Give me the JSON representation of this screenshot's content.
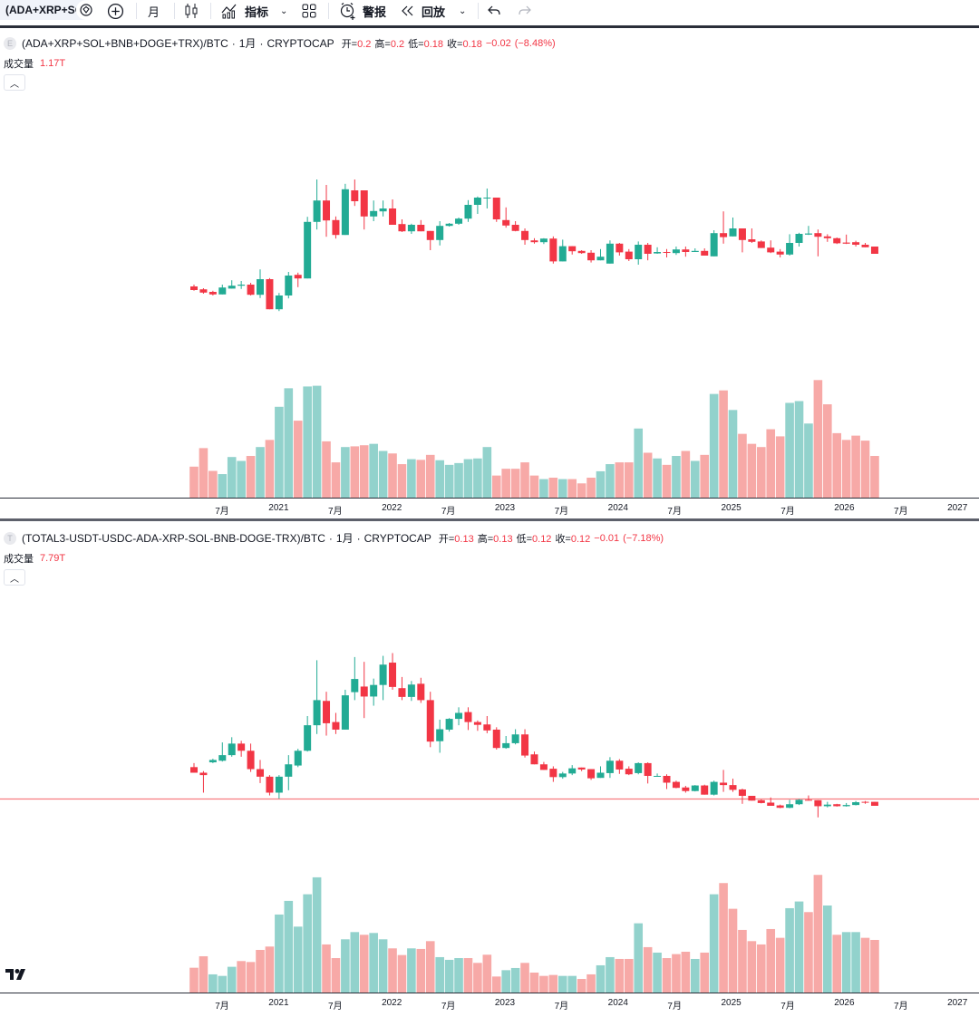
{
  "toolbar": {
    "symbol": "(ADA+XRP+SOL+BNB+DOGE+TRX)/BTC",
    "interval": "月",
    "indicators_label": "指标",
    "alerts_label": "警报",
    "replay_label": "回放"
  },
  "colors": {
    "up": "#22ab94",
    "down": "#f23645",
    "up_volume": "#92d2cc",
    "down_volume": "#f7a9a7",
    "hline": "#f77c80"
  },
  "x_ticks": [
    "7月",
    "2021",
    "7月",
    "2022",
    "7月",
    "2023",
    "7月",
    "2024",
    "7月",
    "2025",
    "7月",
    "2026",
    "7月",
    "2027"
  ],
  "panes": [
    {
      "title": "(ADA+XRP+SOL+BNB+DOGE+TRX)/BTC",
      "interval": "1月",
      "exchange": "CRYPTOCAP",
      "sep": "·",
      "icon_letter": "E",
      "open_label": "开=",
      "open": "0.2",
      "high_label": "高=",
      "high": "0.2",
      "low_label": "低=",
      "low": "0.18",
      "close_label": "收=",
      "close": "0.18",
      "change": "−0.02",
      "change_pct": "(−8.48%)",
      "volume_label": "成交量",
      "volume": "1.17T"
    },
    {
      "title": "(TOTAL3-USDT-USDC-ADA-XRP-SOL-BNB-DOGE-TRX)/BTC",
      "interval": "1月",
      "exchange": "CRYPTOCAP",
      "sep": "·",
      "icon_letter": "T",
      "open_label": "开=",
      "open": "0.13",
      "high_label": "高=",
      "high": "0.13",
      "low_label": "低=",
      "low": "0.12",
      "close_label": "收=",
      "close": "0.12",
      "change": "−0.01",
      "change_pct": "(−7.18%)",
      "volume_label": "成交量",
      "volume": "7.79T"
    }
  ],
  "chart_data": [
    {
      "type": "candlestick",
      "title": "(ADA+XRP+SOL+BNB+DOGE+TRX)/BTC · 1月 · CRYPTOCAP",
      "x_start": "2020-04",
      "x_interval": "1 month",
      "ohlc_fields": [
        "open",
        "high",
        "low",
        "close"
      ],
      "ohlc": [
        [
          0.09,
          0.095,
          0.078,
          0.08
        ],
        [
          0.082,
          0.085,
          0.07,
          0.073
        ],
        [
          0.075,
          0.078,
          0.065,
          0.068
        ],
        [
          0.068,
          0.095,
          0.068,
          0.087
        ],
        [
          0.084,
          0.107,
          0.084,
          0.092
        ],
        [
          0.092,
          0.105,
          0.083,
          0.095
        ],
        [
          0.095,
          0.1,
          0.065,
          0.067
        ],
        [
          0.067,
          0.137,
          0.058,
          0.11
        ],
        [
          0.11,
          0.113,
          0.027,
          0.027
        ],
        [
          0.027,
          0.072,
          0.022,
          0.065
        ],
        [
          0.065,
          0.13,
          0.057,
          0.12
        ],
        [
          0.122,
          0.128,
          0.088,
          0.112
        ],
        [
          0.112,
          0.282,
          0.112,
          0.268
        ],
        [
          0.268,
          0.385,
          0.247,
          0.327
        ],
        [
          0.327,
          0.37,
          0.227,
          0.272
        ],
        [
          0.273,
          0.283,
          0.222,
          0.232
        ],
        [
          0.232,
          0.373,
          0.232,
          0.358
        ],
        [
          0.355,
          0.385,
          0.312,
          0.325
        ],
        [
          0.355,
          0.355,
          0.247,
          0.283
        ],
        [
          0.283,
          0.327,
          0.27,
          0.298
        ],
        [
          0.297,
          0.327,
          0.283,
          0.305
        ],
        [
          0.305,
          0.33,
          0.26,
          0.26
        ],
        [
          0.262,
          0.275,
          0.24,
          0.242
        ],
        [
          0.242,
          0.263,
          0.235,
          0.26
        ],
        [
          0.26,
          0.273,
          0.242,
          0.242
        ],
        [
          0.243,
          0.243,
          0.19,
          0.218
        ],
        [
          0.218,
          0.27,
          0.203,
          0.257
        ],
        [
          0.257,
          0.265,
          0.255,
          0.263
        ],
        [
          0.263,
          0.28,
          0.26,
          0.277
        ],
        [
          0.277,
          0.328,
          0.268,
          0.315
        ],
        [
          0.315,
          0.338,
          0.29,
          0.335
        ],
        [
          0.333,
          0.36,
          0.305,
          0.335
        ],
        [
          0.335,
          0.335,
          0.268,
          0.275
        ],
        [
          0.273,
          0.308,
          0.252,
          0.258
        ],
        [
          0.26,
          0.27,
          0.242,
          0.243
        ],
        [
          0.243,
          0.25,
          0.205,
          0.218
        ],
        [
          0.217,
          0.223,
          0.208,
          0.212
        ],
        [
          0.212,
          0.223,
          0.207,
          0.222
        ],
        [
          0.222,
          0.228,
          0.153,
          0.159
        ],
        [
          0.159,
          0.219,
          0.159,
          0.201
        ],
        [
          0.201,
          0.201,
          0.178,
          0.187
        ],
        [
          0.188,
          0.19,
          0.18,
          0.182
        ],
        [
          0.183,
          0.19,
          0.156,
          0.162
        ],
        [
          0.162,
          0.193,
          0.162,
          0.172
        ],
        [
          0.153,
          0.217,
          0.153,
          0.208
        ],
        [
          0.208,
          0.21,
          0.175,
          0.184
        ],
        [
          0.186,
          0.193,
          0.16,
          0.165
        ],
        [
          0.165,
          0.214,
          0.15,
          0.205
        ],
        [
          0.205,
          0.21,
          0.162,
          0.18
        ],
        [
          0.181,
          0.198,
          0.18,
          0.185
        ],
        [
          0.185,
          0.193,
          0.17,
          0.183
        ],
        [
          0.182,
          0.2,
          0.177,
          0.192
        ],
        [
          0.192,
          0.2,
          0.172,
          0.185
        ],
        [
          0.185,
          0.195,
          0.185,
          0.188
        ],
        [
          0.188,
          0.195,
          0.175,
          0.175
        ],
        [
          0.173,
          0.245,
          0.173,
          0.237
        ],
        [
          0.237,
          0.297,
          0.208,
          0.226
        ],
        [
          0.228,
          0.28,
          0.228,
          0.25
        ],
        [
          0.25,
          0.25,
          0.184,
          0.218
        ],
        [
          0.22,
          0.25,
          0.21,
          0.213
        ],
        [
          0.214,
          0.217,
          0.196,
          0.196
        ],
        [
          0.197,
          0.217,
          0.182,
          0.184
        ],
        [
          0.186,
          0.193,
          0.17,
          0.178
        ],
        [
          0.178,
          0.234,
          0.175,
          0.21
        ],
        [
          0.21,
          0.238,
          0.2,
          0.235
        ],
        [
          0.233,
          0.257,
          0.232,
          0.236
        ],
        [
          0.237,
          0.247,
          0.173,
          0.227
        ],
        [
          0.228,
          0.234,
          0.213,
          0.223
        ],
        [
          0.223,
          0.225,
          0.207,
          0.209
        ],
        [
          0.211,
          0.233,
          0.207,
          0.208
        ],
        [
          0.212,
          0.216,
          0.2,
          0.205
        ],
        [
          0.205,
          0.21,
          0.198,
          0.198
        ],
        [
          0.2,
          0.2,
          0.18,
          0.18
        ]
      ],
      "volume_unit": "T",
      "volume": [
        0.87,
        1.39,
        0.75,
        0.66,
        1.14,
        1.03,
        1.17,
        1.42,
        1.62,
        2.55,
        3.07,
        2.16,
        3.12,
        3.14,
        1.58,
        0.99,
        1.42,
        1.44,
        1.47,
        1.51,
        1.31,
        1.24,
        0.94,
        1.08,
        1.06,
        1.2,
        1.05,
        0.92,
        0.97,
        1.08,
        1.1,
        1.42,
        0.62,
        0.81,
        0.81,
        0.99,
        0.62,
        0.52,
        0.56,
        0.52,
        0.52,
        0.4,
        0.56,
        0.74,
        0.94,
        0.99,
        0.99,
        1.94,
        1.26,
        1.1,
        0.92,
        1.17,
        1.31,
        1.03,
        1.2,
        2.91,
        3.01,
        2.46,
        1.79,
        1.51,
        1.42,
        1.92,
        1.72,
        2.66,
        2.71,
        2.08,
        3.3,
        2.62,
        1.81,
        1.62,
        1.74,
        1.6,
        1.17
      ]
    },
    {
      "type": "candlestick",
      "title": "(TOTAL3-USDT-USDC-ADA-XRP-SOL-BNB-DOGE-TRX)/BTC · 1月 · CRYPTOCAP",
      "x_start": "2020-04",
      "x_interval": "1 month",
      "ohlc_fields": [
        "open",
        "high",
        "low",
        "close"
      ],
      "ohlc": [
        [
          0.217,
          0.227,
          0.203,
          0.203
        ],
        [
          0.203,
          0.207,
          0.153,
          0.197
        ],
        [
          0.229,
          0.238,
          0.227,
          0.235
        ],
        [
          0.233,
          0.279,
          0.231,
          0.247
        ],
        [
          0.247,
          0.292,
          0.243,
          0.276
        ],
        [
          0.276,
          0.283,
          0.243,
          0.258
        ],
        [
          0.258,
          0.276,
          0.205,
          0.212
        ],
        [
          0.212,
          0.235,
          0.177,
          0.193
        ],
        [
          0.193,
          0.197,
          0.146,
          0.153
        ],
        [
          0.153,
          0.197,
          0.138,
          0.193
        ],
        [
          0.193,
          0.247,
          0.159,
          0.224
        ],
        [
          0.221,
          0.263,
          0.217,
          0.258
        ],
        [
          0.258,
          0.345,
          0.256,
          0.322
        ],
        [
          0.322,
          0.485,
          0.3,
          0.385
        ],
        [
          0.383,
          0.406,
          0.296,
          0.327
        ],
        [
          0.33,
          0.353,
          0.3,
          0.311
        ],
        [
          0.311,
          0.411,
          0.311,
          0.397
        ],
        [
          0.405,
          0.493,
          0.385,
          0.438
        ],
        [
          0.419,
          0.481,
          0.34,
          0.394
        ],
        [
          0.394,
          0.439,
          0.371,
          0.423
        ],
        [
          0.423,
          0.496,
          0.385,
          0.474
        ],
        [
          0.479,
          0.503,
          0.411,
          0.418
        ],
        [
          0.415,
          0.443,
          0.385,
          0.393
        ],
        [
          0.393,
          0.433,
          0.383,
          0.424
        ],
        [
          0.426,
          0.441,
          0.378,
          0.385
        ],
        [
          0.385,
          0.406,
          0.267,
          0.281
        ],
        [
          0.282,
          0.336,
          0.253,
          0.312
        ],
        [
          0.311,
          0.34,
          0.306,
          0.338
        ],
        [
          0.338,
          0.367,
          0.322,
          0.353
        ],
        [
          0.355,
          0.367,
          0.31,
          0.33
        ],
        [
          0.33,
          0.334,
          0.308,
          0.323
        ],
        [
          0.324,
          0.345,
          0.302,
          0.309
        ],
        [
          0.311,
          0.317,
          0.261,
          0.265
        ],
        [
          0.265,
          0.295,
          0.263,
          0.277
        ],
        [
          0.277,
          0.312,
          0.274,
          0.299
        ],
        [
          0.299,
          0.312,
          0.241,
          0.246
        ],
        [
          0.249,
          0.256,
          0.224,
          0.224
        ],
        [
          0.224,
          0.23,
          0.21,
          0.21
        ],
        [
          0.213,
          0.219,
          0.18,
          0.192
        ],
        [
          0.192,
          0.205,
          0.188,
          0.201
        ],
        [
          0.201,
          0.222,
          0.197,
          0.214
        ],
        [
          0.216,
          0.216,
          0.207,
          0.211
        ],
        [
          0.212,
          0.212,
          0.185,
          0.189
        ],
        [
          0.19,
          0.219,
          0.19,
          0.203
        ],
        [
          0.202,
          0.242,
          0.19,
          0.233
        ],
        [
          0.233,
          0.237,
          0.2,
          0.211
        ],
        [
          0.213,
          0.219,
          0.197,
          0.199
        ],
        [
          0.202,
          0.229,
          0.199,
          0.227
        ],
        [
          0.227,
          0.229,
          0.176,
          0.195
        ],
        [
          0.194,
          0.201,
          0.193,
          0.195
        ],
        [
          0.195,
          0.199,
          0.162,
          0.178
        ],
        [
          0.18,
          0.183,
          0.164,
          0.165
        ],
        [
          0.166,
          0.17,
          0.153,
          0.157
        ],
        [
          0.157,
          0.172,
          0.156,
          0.171
        ],
        [
          0.171,
          0.173,
          0.148,
          0.148
        ],
        [
          0.148,
          0.183,
          0.146,
          0.18
        ],
        [
          0.178,
          0.21,
          0.155,
          0.172
        ],
        [
          0.172,
          0.188,
          0.155,
          0.16
        ],
        [
          0.161,
          0.163,
          0.125,
          0.145
        ],
        [
          0.145,
          0.145,
          0.133,
          0.133
        ],
        [
          0.134,
          0.136,
          0.126,
          0.127
        ],
        [
          0.128,
          0.141,
          0.12,
          0.12
        ],
        [
          0.121,
          0.123,
          0.114,
          0.115
        ],
        [
          0.115,
          0.135,
          0.114,
          0.124
        ],
        [
          0.124,
          0.137,
          0.122,
          0.135
        ],
        [
          0.135,
          0.146,
          0.134,
          0.134
        ],
        [
          0.134,
          0.134,
          0.091,
          0.119
        ],
        [
          0.119,
          0.13,
          0.116,
          0.123
        ],
        [
          0.124,
          0.125,
          0.118,
          0.119
        ],
        [
          0.119,
          0.127,
          0.118,
          0.122
        ],
        [
          0.122,
          0.132,
          0.121,
          0.129
        ],
        [
          0.13,
          0.132,
          0.125,
          0.129
        ],
        [
          0.13,
          0.13,
          0.12,
          0.12
        ]
      ],
      "volume_unit": "T",
      "volume": [
        3.67,
        5.37,
        2.69,
        2.46,
        3.81,
        4.66,
        4.52,
        6.31,
        6.81,
        11.55,
        13.57,
        9.76,
        14.55,
        17.06,
        7.12,
        5.1,
        7.88,
        8.95,
        8.55,
        8.82,
        7.88,
        6.54,
        5.55,
        6.54,
        6.45,
        7.61,
        5.24,
        4.84,
        5.1,
        5.1,
        4.39,
        5.6,
        2.37,
        3.31,
        3.63,
        4.39,
        2.95,
        2.46,
        2.6,
        2.46,
        2.46,
        2.01,
        2.69,
        4.03,
        5.24,
        4.97,
        4.97,
        10.25,
        6.72,
        5.91,
        5.1,
        5.69,
        6.04,
        4.97,
        5.91,
        14.55,
        16.21,
        12.4,
        9.27,
        7.61,
        7.12,
        9.4,
        8.1,
        12.49,
        13.48,
        11.91,
        17.42,
        12.89,
        8.55,
        8.95,
        8.95,
        8.1,
        7.79
      ],
      "horizontal_line_price": 0.137
    }
  ]
}
